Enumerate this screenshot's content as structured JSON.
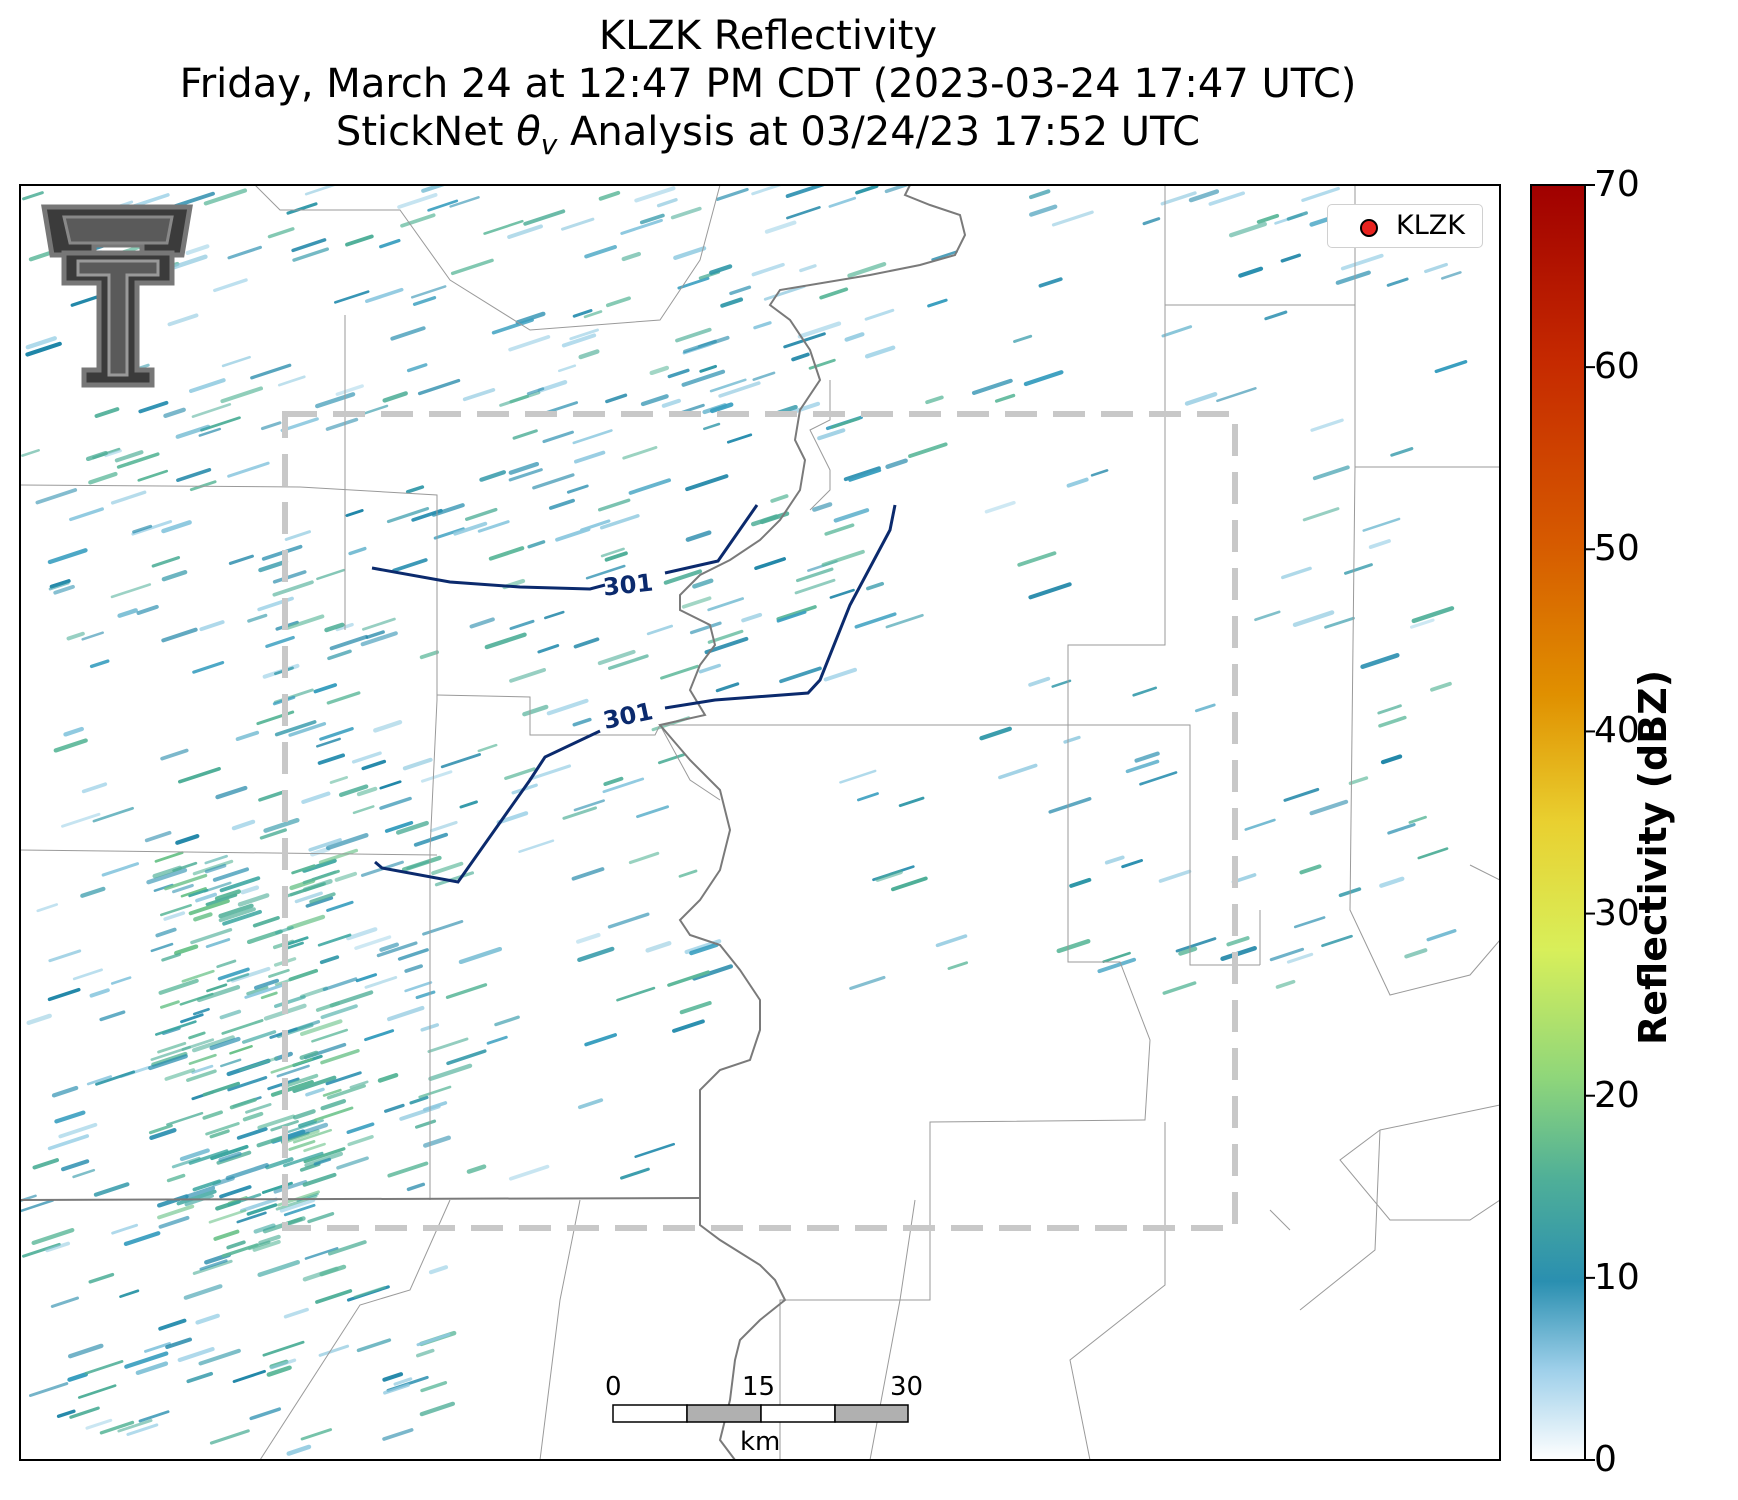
{
  "title": {
    "line1": "KLZK Reflectivity",
    "line2": "Friday, March 24 at 12:47 PM CDT (2023-03-24 17:47 UTC)",
    "line3_prefix": "StickNet ",
    "line3_theta": "θ",
    "line3_sub": "v",
    "line3_suffix": " Analysis at 03/24/23 17:52 UTC"
  },
  "legend": {
    "label": "KLZK",
    "marker_color": "#e8231f"
  },
  "colorbar": {
    "label": "Reflectivity (dBZ)",
    "min": 0,
    "max": 70,
    "ticks": [
      "0",
      "10",
      "20",
      "30",
      "40",
      "50",
      "60",
      "70"
    ],
    "colors": [
      "#ffffff",
      "#2a8fb0",
      "#5ab98c",
      "#9fd86a",
      "#e6f25a",
      "#e2b400",
      "#d76800",
      "#a00000"
    ]
  },
  "contours": [
    {
      "label": "301"
    },
    {
      "label": "301"
    }
  ],
  "scale_bar": {
    "ticks": [
      "0",
      "15",
      "30"
    ],
    "unit": "km"
  },
  "logo_icon": "texas-tech-double-t-logo",
  "colors": {
    "contour": "#0b2a6d",
    "state_border": "#7a7a7a",
    "county_border": "#9a9a9a",
    "analysis_box": "#c8c8c8"
  }
}
